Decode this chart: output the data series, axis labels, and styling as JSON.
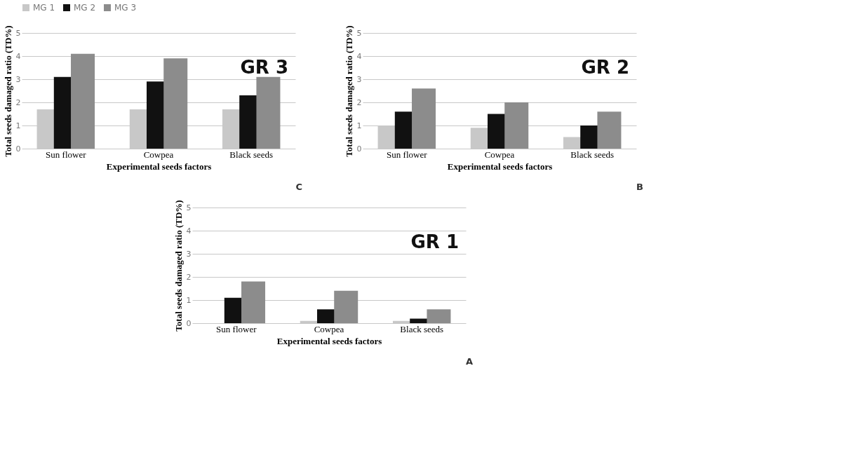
{
  "chart_data": [
    {
      "type": "bar",
      "xlabel": "Experimental seeds factors",
      "ylabel": "Total seeds damaged ratio (TD%)",
      "categories": [
        "Sun flower",
        "Cowpea",
        "Black seeds"
      ],
      "series": [
        {
          "name": "MG 1",
          "color": "#c8c8c8",
          "values": [
            1.7,
            1.7,
            1.7
          ]
        },
        {
          "name": "MG 2",
          "color": "#111111",
          "values": [
            3.1,
            2.9,
            2.3
          ]
        },
        {
          "name": "MG 3",
          "color": "#8c8c8c",
          "values": [
            4.1,
            3.9,
            3.1
          ]
        }
      ],
      "ylim": [
        0,
        5
      ],
      "yticks": [
        0,
        1,
        2,
        3,
        4,
        5
      ],
      "grid": "y",
      "legend": "top",
      "annotations": [
        "GR 3",
        "C"
      ]
    },
    {
      "type": "bar",
      "xlabel": "Experimental seeds factors",
      "ylabel": "Total seeds damaged ratio (TD%)",
      "categories": [
        "Sun flower",
        "Cowpea",
        "Black seeds"
      ],
      "series": [
        {
          "name": "MG 1",
          "color": "#c8c8c8",
          "values": [
            1.0,
            0.9,
            0.5
          ]
        },
        {
          "name": "MG 2",
          "color": "#111111",
          "values": [
            1.6,
            1.5,
            1.0
          ]
        },
        {
          "name": "MG 3",
          "color": "#8c8c8c",
          "values": [
            2.6,
            2.0,
            1.6
          ]
        }
      ],
      "ylim": [
        0,
        5
      ],
      "yticks": [
        0,
        1,
        2,
        3,
        4,
        5
      ],
      "grid": "y",
      "legend": "top",
      "annotations": [
        "GR 2",
        "B"
      ]
    },
    {
      "type": "bar",
      "xlabel": "Experimental seeds factors",
      "ylabel": "Total seeds damaged ratio (TD%)",
      "categories": [
        "Sun flower",
        "Cowpea",
        "Black seeds"
      ],
      "series": [
        {
          "name": "MG 1",
          "color": "#c8c8c8",
          "values": [
            0,
            0.1,
            0.1
          ]
        },
        {
          "name": "MG 2",
          "color": "#111111",
          "values": [
            1.1,
            0.6,
            0.2
          ]
        },
        {
          "name": "MG 3",
          "color": "#8c8c8c",
          "values": [
            1.8,
            1.4,
            0.6
          ]
        }
      ],
      "ylim": [
        0,
        5
      ],
      "yticks": [
        0,
        1,
        2,
        3,
        4,
        5
      ],
      "grid": "y",
      "legend": "top",
      "annotations": [
        "GR 1",
        "A"
      ]
    }
  ]
}
